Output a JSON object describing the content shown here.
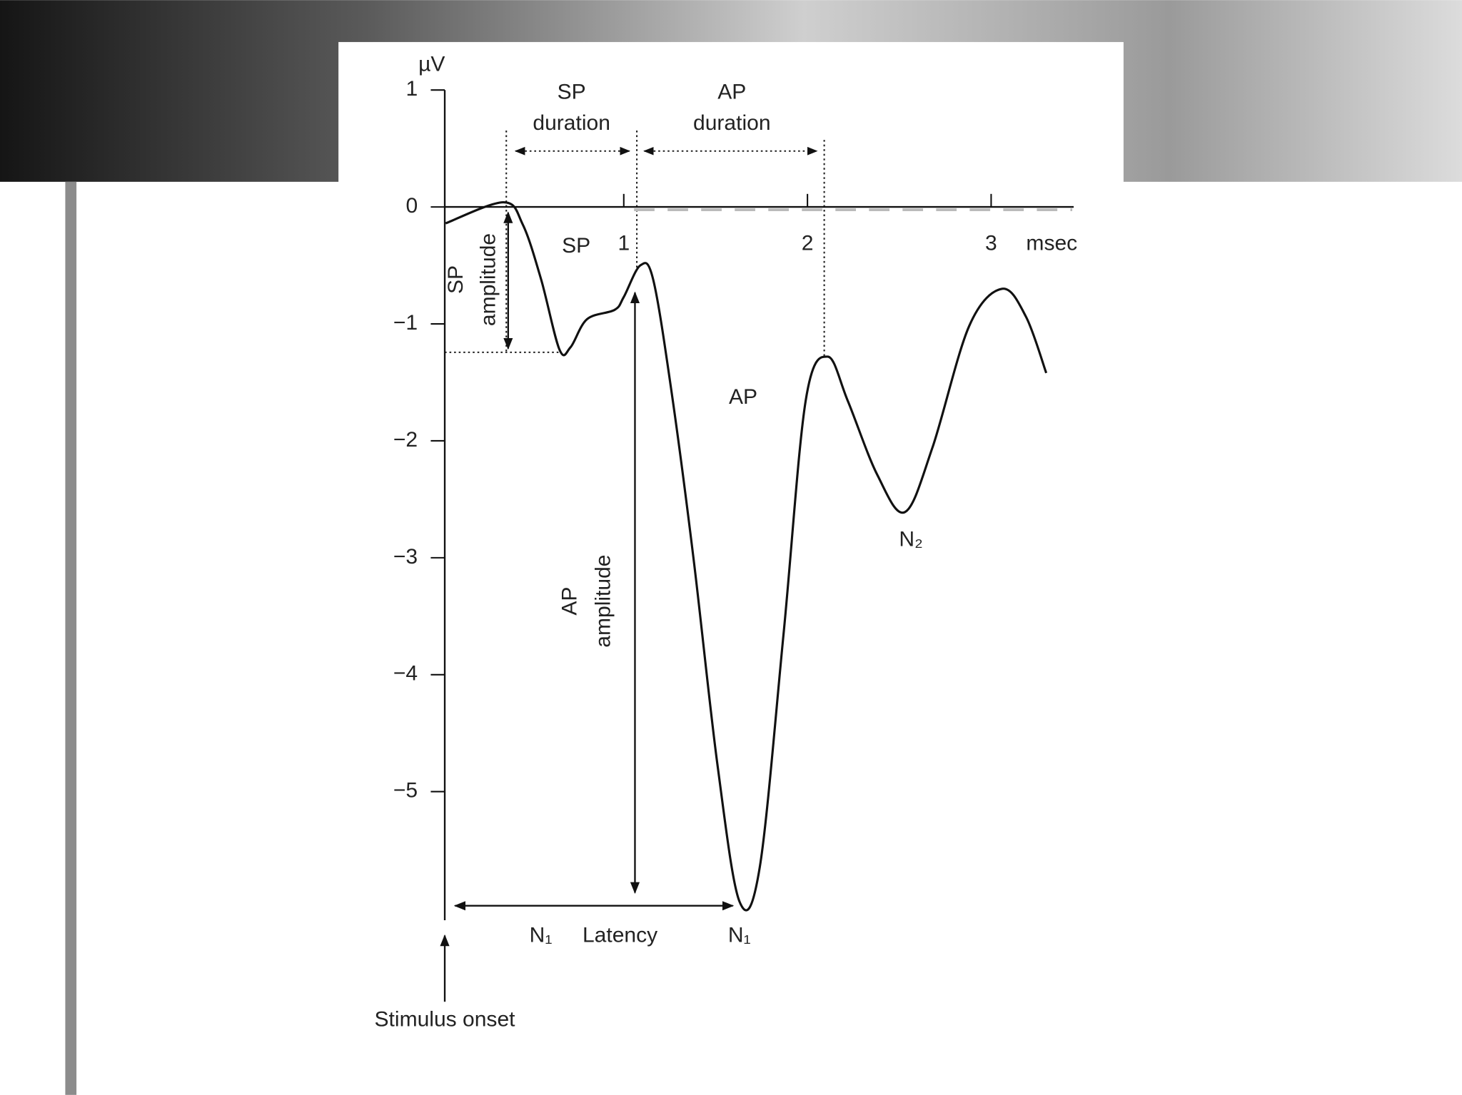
{
  "chart_data": {
    "type": "line",
    "y_label": "µV",
    "x_label": "msec",
    "xlim": [
      0,
      3.5
    ],
    "ylim": [
      -6.1,
      1
    ],
    "xticks": [
      1,
      2,
      3
    ],
    "yticks": [
      1,
      0,
      {
        "value": -1,
        "label": "−1"
      },
      {
        "value": -2,
        "label": "−2"
      },
      {
        "value": -3,
        "label": "−3"
      },
      {
        "value": -4,
        "label": "−4"
      },
      {
        "value": -5,
        "label": "−5"
      }
    ],
    "series": [
      {
        "color": "#111111",
        "x": [
          0.03,
          0.345,
          0.45,
          0.55,
          0.65,
          0.71,
          0.8,
          0.95,
          1.0,
          1.09,
          1.16,
          1.26,
          1.38,
          1.51,
          1.63,
          1.74,
          1.87,
          1.99,
          2.11,
          2.22,
          2.38,
          2.53,
          2.68,
          2.88,
          3.06,
          3.19,
          3.3
        ],
        "values": [
          -0.14,
          0.04,
          -0.15,
          -0.62,
          -1.22,
          -1.2,
          -0.96,
          -0.88,
          -0.77,
          -0.5,
          -0.62,
          -1.58,
          -3.01,
          -4.77,
          -5.94,
          -5.65,
          -3.65,
          -1.66,
          -1.28,
          -1.66,
          -2.29,
          -2.61,
          -2.06,
          -1.02,
          -0.7,
          -0.94,
          -1.42
        ]
      }
    ],
    "annotations": [
      [
        "SP",
        "duration"
      ],
      [
        "AP",
        "duration"
      ],
      [
        "SP",
        "amplitude"
      ],
      [
        "SP"
      ],
      [
        "AP"
      ],
      [
        "AP",
        "amplitude"
      ],
      [
        "N₂"
      ],
      [
        "N₁"
      ],
      [
        "Latency"
      ],
      [
        "N₁"
      ],
      [
        "Stimulus onset"
      ]
    ]
  }
}
